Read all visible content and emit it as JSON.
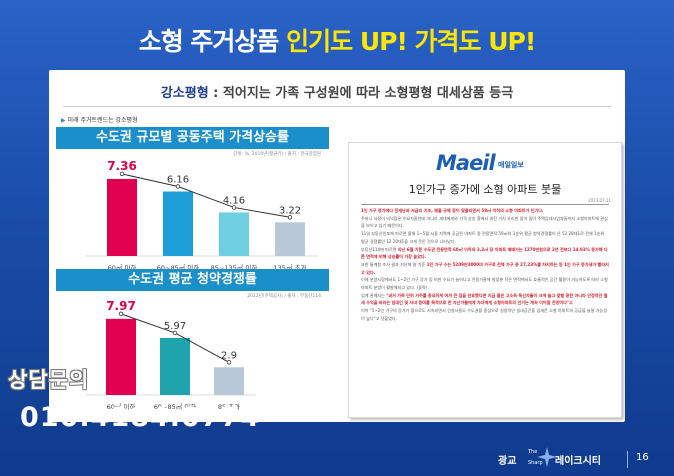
{
  "headline": {
    "part1": "소형 주거상품 ",
    "part2": "인기도 UP! 가격도 UP!"
  },
  "subtitle": {
    "keyword": "강소평형",
    "text": " : 적어지는 가족 구성원에 따라 소형평형 대세상품 등극"
  },
  "mini_label": "미래 주거트렌드는 강소평형",
  "chart_data": [
    {
      "type": "bar",
      "title": "수도권 규모별 공동주택 가격상승률",
      "source": "단위: %, 2010년(평균기) / 출처 : 한국감정원",
      "categories": [
        "60㎡ 이하",
        "60~85㎡ 이하",
        "85~135㎡ 이하",
        "135㎡ 초과"
      ],
      "values": [
        7.36,
        6.16,
        4.16,
        3.22
      ],
      "value_labels": [
        "7.36",
        "6.16",
        "4.16",
        "3.22"
      ],
      "colors": [
        "#e0004f",
        "#1d9ed6",
        "#6ecfe0",
        "#b9c8d6"
      ],
      "trend_line": true,
      "ylim": [
        0,
        8.5
      ]
    },
    {
      "type": "bar",
      "title": "수도권 평균 청약경쟁률",
      "source": "2012년(주택공사) / 출처 : 부동산114",
      "categories": [
        "60㎡ 이하",
        "60~85㎡ 이하",
        "85 초과"
      ],
      "values": [
        7.97,
        5.97,
        2.9
      ],
      "value_labels": [
        "7.97",
        "5.97",
        "2.9"
      ],
      "colors": [
        "#e0004f",
        "#1fa3ac",
        "#b9c8d6"
      ],
      "trend_line": true,
      "ylim": [
        0,
        9
      ]
    }
  ],
  "article": {
    "logo_main": "Maeil",
    "logo_sub": "매일일보",
    "title": "1인가구 증가에 소형 아파트 붓물",
    "date": "2013.07.11",
    "paragraphs": [
      {
        "style": "red",
        "text": "1인 가구 증가에다 전세난과 저금리 기조, 매출 규제 등이 맞물리면서 59㎡ 이하의 소형 아파트가 인기다."
      },
      {
        "style": "normal",
        "text": "주머니 사정이 넉넉잖은 수요자들한테 아니라 세대에게와 가격 상승 흥에서 여전 가치 유리한 점이 많아 주택임대사업자들까지 소형아파트에 관심을 보이고 있기 때문이다."
      },
      {
        "style": "normal",
        "text": "11일 부동산인포에 따르면 올해 1~5월 서울 지역에 공급된 아파트 중 전용면적 59㎡의 1순위 평균 청약경쟁률이 은 52.28대1로 전체 1순위 평균 경쟁률인 12.20대1을 크게 웃돈 것으로 나타났다."
      },
      {
        "style": "mixed",
        "normal": "부동산114에 따르면 ",
        "red": "지난 6월 기준 수도권 전용면적 60㎡ 이하의 3.3㎡ 당 아파트 매매가는 1270만원으로 2년 전보다 14.93% 증가해 다른 면적에 비해 상승률이 가장 높았다."
      },
      {
        "style": "mixed",
        "normal": "또한 통계청 조사 결과 지난해 말 기준 ",
        "red": "1인 가구 수는 5209만3000여 가구로 전체 가구 중 27.23%를 차지하는 등 1인 가구 증가세가 빨라지고 있다."
      },
      {
        "style": "normal",
        "text": "이에 분양시장에서도 1~2인 가구 증가 등 비싼 수요가 늘어나고 전용가율에 발맞춘 작은 면적에서도 효율적인 공간 활용이 가능하도록 따라 소형아파트 분양이 활발해지고 있다. (중략)"
      },
      {
        "style": "mixed",
        "normal": "업계 관계자는 ",
        "red": "\"과거 가족 단위 거주를 중요하게 여겨 큰 집을 선호했다면 지금 젊은 고소득 독신자들이 크게 늘고 맞벌 콩한 아니라 안정적인 월세 수익을 바라는 임대인 및 자녀 증여를 목적으로 한 자산가들에게 자녀에게 소형아파트의 인기는 계속 이어질 전망이다\"고 "
      },
      {
        "style": "normal",
        "text": "이어 \"1~2인 가구의 증가가 많으로도 지속되면서 건설사들도 수도권을 중심으로 실용적인 실내공간을 압세운 소형 아파트의 공급을 늘릴 가능성이 높다\"고 덧붙였다."
      }
    ]
  },
  "consult": "상담문의",
  "phone": "010.4184.0774",
  "footer": {
    "brand_left": "광교",
    "brand_the": "The",
    "brand_sharp": "Sharp",
    "brand_right": "레이크시티",
    "page": "16"
  }
}
